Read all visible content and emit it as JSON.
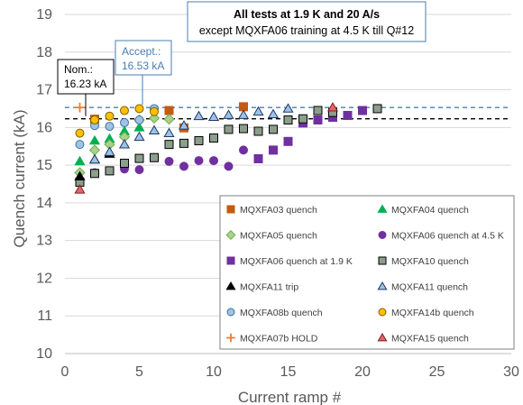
{
  "chart_data": {
    "type": "scatter",
    "title": "",
    "xlabel": "Current ramp #",
    "ylabel": "Quench current (kA)",
    "xlim": [
      0,
      30
    ],
    "ylim": [
      10,
      19
    ],
    "xticks": [
      "0",
      "5",
      "10",
      "15",
      "20",
      "25",
      "30"
    ],
    "yticks": [
      "10",
      "11",
      "12",
      "13",
      "14",
      "15",
      "16",
      "17",
      "18",
      "19"
    ],
    "grid": "horizontal",
    "legend_position": "bottom-right",
    "reference_lines": [
      {
        "label": "Nom.:\n16.23 kA",
        "value": 16.23,
        "color": "#000000"
      },
      {
        "label": "Accept.:\n16.53 kA",
        "value": 16.53,
        "color": "#4a7cb5"
      }
    ],
    "note": {
      "line1": "All tests at 1.9 K and 20 A/s",
      "line2": "except MQXFA06 training at 4.5 K till Q#12"
    },
    "series": [
      {
        "name": "MQXFA03 quench",
        "marker": "square",
        "color": "#c55a11",
        "stroke": "#c55a11",
        "x": [
          2,
          7,
          8,
          12
        ],
        "y": [
          16.22,
          16.45,
          15.99,
          16.55
        ]
      },
      {
        "name": "MQXFA04 quench",
        "marker": "triangle",
        "color": "#00b050",
        "stroke": "#00b050",
        "x": [
          1,
          2,
          3,
          4,
          5
        ],
        "y": [
          15.1,
          15.65,
          15.7,
          15.9,
          16.0
        ]
      },
      {
        "name": "MQXFA05 quench",
        "marker": "diamond",
        "color": "#a9d18e",
        "stroke": "#70ad47",
        "x": [
          1,
          2,
          3,
          4,
          5,
          6,
          7
        ],
        "y": [
          14.8,
          15.4,
          15.55,
          15.75,
          16.2,
          16.25,
          16.22
        ]
      },
      {
        "name": "MQXFA06 quench at 4.5 K",
        "marker": "circle",
        "color": "#7030a0",
        "stroke": "#7030a0",
        "x": [
          2,
          3,
          4,
          5,
          6,
          7,
          8,
          9,
          10,
          11,
          12
        ],
        "y": [
          14.8,
          14.85,
          14.9,
          14.88,
          15.2,
          15.1,
          14.97,
          15.12,
          15.12,
          14.97,
          15.4
        ]
      },
      {
        "name": "MQXFA06 quench at 1.9 K",
        "marker": "square",
        "color": "#7030a0",
        "stroke": "#7030a0",
        "x": [
          13,
          14,
          15,
          16,
          17,
          18,
          19,
          20
        ],
        "y": [
          15.17,
          15.4,
          15.63,
          16.12,
          16.2,
          16.27,
          16.32,
          16.45
        ]
      },
      {
        "name": "MQXFA10 quench",
        "marker": "square",
        "color": "#8c9e8c",
        "stroke": "#000000",
        "x": [
          1,
          2,
          3,
          4,
          5,
          6,
          7,
          8,
          9,
          10,
          11,
          12,
          13,
          14,
          15,
          16,
          17,
          18,
          21
        ],
        "y": [
          14.55,
          14.78,
          14.85,
          15.05,
          15.18,
          15.2,
          15.55,
          15.58,
          15.65,
          15.72,
          15.95,
          15.97,
          15.9,
          15.95,
          16.2,
          16.23,
          16.45,
          16.4,
          16.5
        ]
      },
      {
        "name": "MQXFA11 trip",
        "marker": "triangle",
        "color": "#000000",
        "stroke": "#000000",
        "x": [
          1,
          2,
          3
        ],
        "y": [
          14.7,
          15.15,
          15.3
        ]
      },
      {
        "name": "MQXFA11 quench",
        "marker": "triangle",
        "color": "#9dc3e6",
        "stroke": "#1f3864",
        "x": [
          2,
          3,
          4,
          5,
          6,
          7,
          8,
          9,
          10,
          11,
          12,
          13,
          14,
          15
        ],
        "y": [
          15.15,
          15.35,
          15.55,
          15.75,
          15.92,
          15.85,
          16.05,
          16.3,
          16.28,
          16.33,
          16.33,
          16.42,
          16.35,
          16.5
        ]
      },
      {
        "name": "MQXFA08b quench",
        "marker": "circle",
        "color": "#9dc3e6",
        "stroke": "#41719c",
        "x": [
          1,
          2,
          3,
          4,
          5,
          6
        ],
        "y": [
          15.55,
          16.05,
          16.03,
          16.13,
          16.2,
          16.5
        ]
      },
      {
        "name": "MQXFA14b quench",
        "marker": "circle",
        "color": "#ffc000",
        "stroke": "#7f6000",
        "x": [
          1,
          2,
          3,
          4,
          5,
          6
        ],
        "y": [
          15.85,
          16.2,
          16.3,
          16.45,
          16.5,
          16.42
        ]
      },
      {
        "name": "MQXFA07b HOLD",
        "marker": "plus",
        "color": "#ed7d31",
        "stroke": "#ed7d31",
        "x": [
          1
        ],
        "y": [
          16.53
        ]
      },
      {
        "name": "MQXFA15 quench",
        "marker": "triangle",
        "color": "#e06666",
        "stroke": "#7f1f1f",
        "x": [
          1,
          18
        ],
        "y": [
          14.35,
          16.53
        ]
      }
    ]
  }
}
